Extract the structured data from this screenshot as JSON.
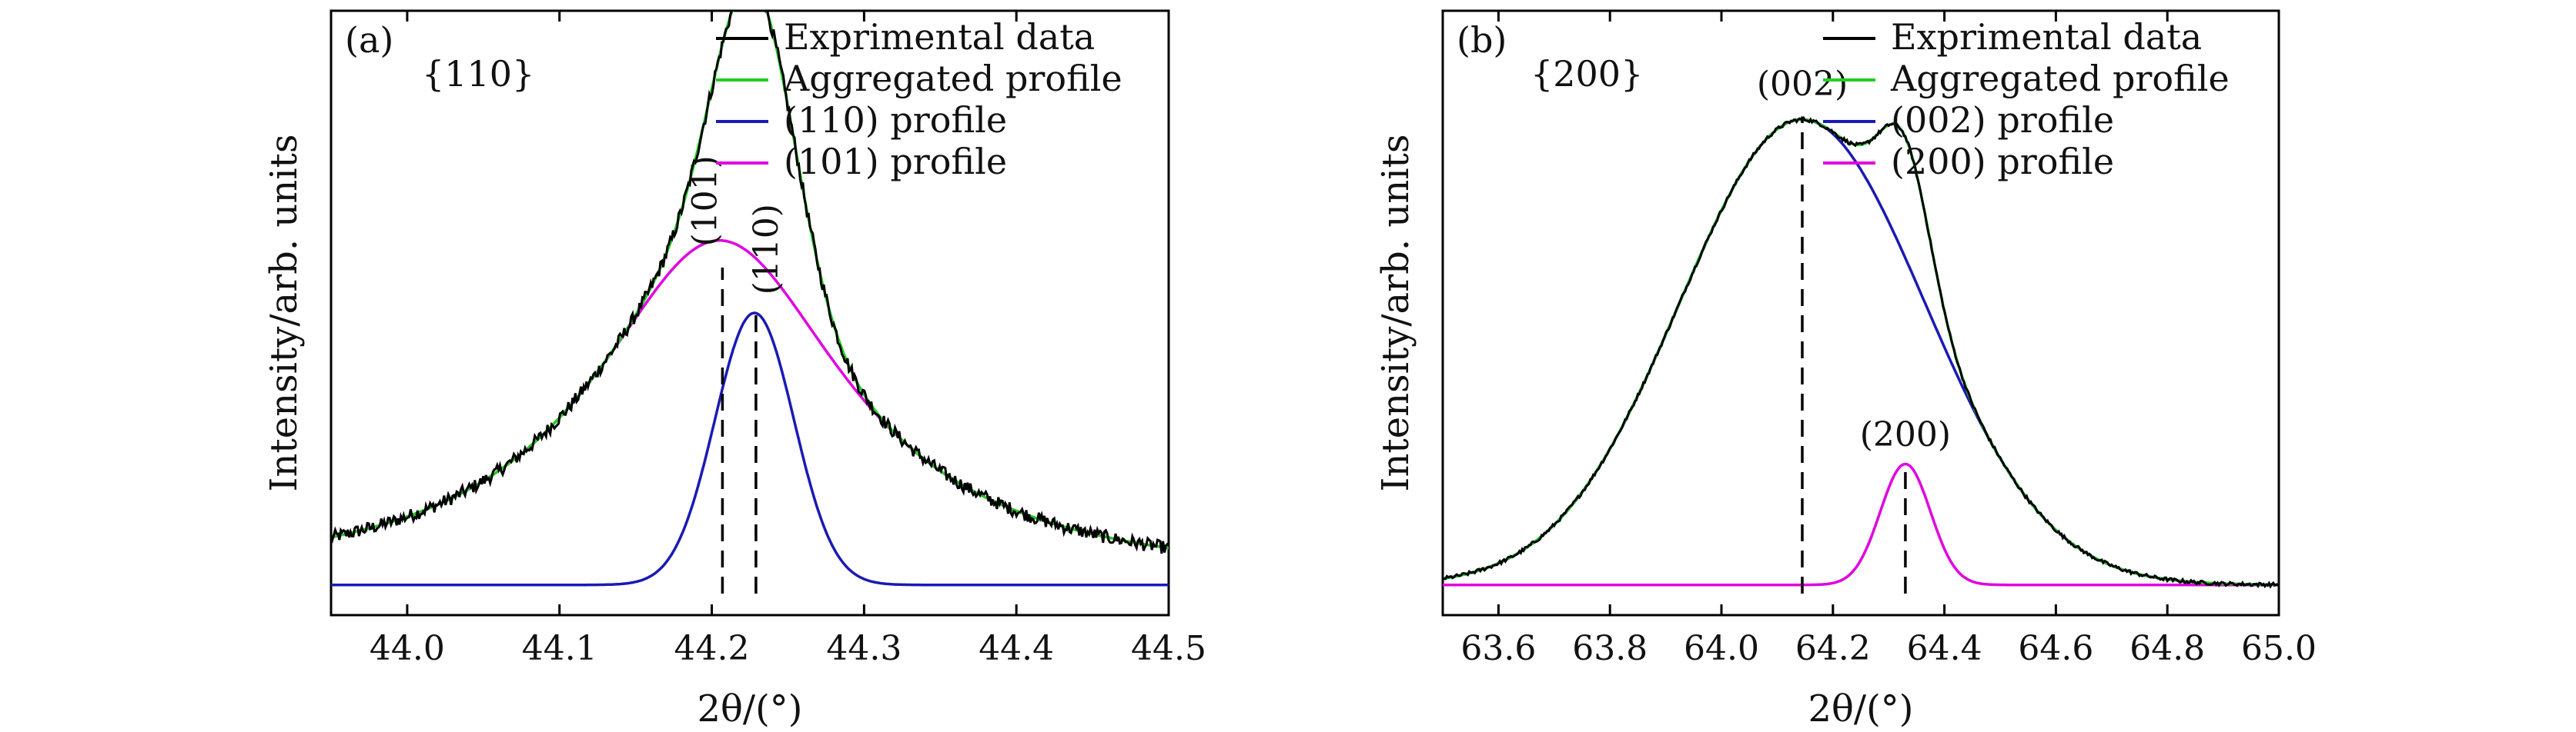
{
  "chart_data": [
    {
      "type": "line",
      "panel_label": "(a)",
      "family_label": "{110}",
      "xlabel": "2θ/(°)",
      "ylabel": "Intensity/arb. units",
      "xlim": [
        43.95,
        44.5
      ],
      "ylim": [
        0,
        1
      ],
      "xticks": [
        44.0,
        44.1,
        44.2,
        44.3,
        44.4,
        44.5
      ],
      "xtick_labels": [
        "44.0",
        "44.1",
        "44.2",
        "44.3",
        "44.4",
        "44.5"
      ],
      "legend_position": "top-right",
      "series": [
        {
          "name": "Exprimental data",
          "color": "#000000",
          "kind": "noisy-sum"
        },
        {
          "name": "Aggregated profile",
          "color": "#1fd01f",
          "kind": "sum"
        },
        {
          "name": "(110) profile",
          "color": "#1a1ab4",
          "kind": "peak",
          "center": 44.228,
          "amplitude": 0.45,
          "width": 0.026
        },
        {
          "name": "(101) profile",
          "color": "#e000e0",
          "kind": "peak",
          "center": 44.205,
          "amplitude": 0.57,
          "width": 0.085
        }
      ],
      "baseline": 0.05,
      "peak_markers": [
        {
          "label": "(101)",
          "x": 44.207
        },
        {
          "label": "(110)",
          "x": 44.229
        }
      ]
    },
    {
      "type": "line",
      "panel_label": "(b)",
      "family_label": "{200}",
      "xlabel": "2θ/(°)",
      "ylabel": "Intensity/arb. units",
      "xlim": [
        63.5,
        65.0
      ],
      "ylim": [
        0,
        1
      ],
      "xticks": [
        63.6,
        63.8,
        64.0,
        64.2,
        64.4,
        64.6,
        64.8,
        65.0
      ],
      "xtick_labels": [
        "63.6",
        "63.8",
        "64.0",
        "64.2",
        "64.4",
        "64.6",
        "64.8",
        "65.0"
      ],
      "legend_position": "top-right",
      "series": [
        {
          "name": "Exprimental data",
          "color": "#000000",
          "kind": "noisy-sum"
        },
        {
          "name": "Aggregated profile",
          "color": "#1fd01f",
          "kind": "sum"
        },
        {
          "name": "(002) profile",
          "color": "#1a1ab4",
          "kind": "peak",
          "center": 64.145,
          "amplitude": 0.77,
          "width": 0.22
        },
        {
          "name": "(200) profile",
          "color": "#e000e0",
          "kind": "peak",
          "center": 64.33,
          "amplitude": 0.2,
          "width": 0.045
        }
      ],
      "baseline": 0.05,
      "peak_markers": [
        {
          "label": "(002)",
          "x": 64.145
        },
        {
          "label": "(200)",
          "x": 64.33
        }
      ]
    }
  ]
}
